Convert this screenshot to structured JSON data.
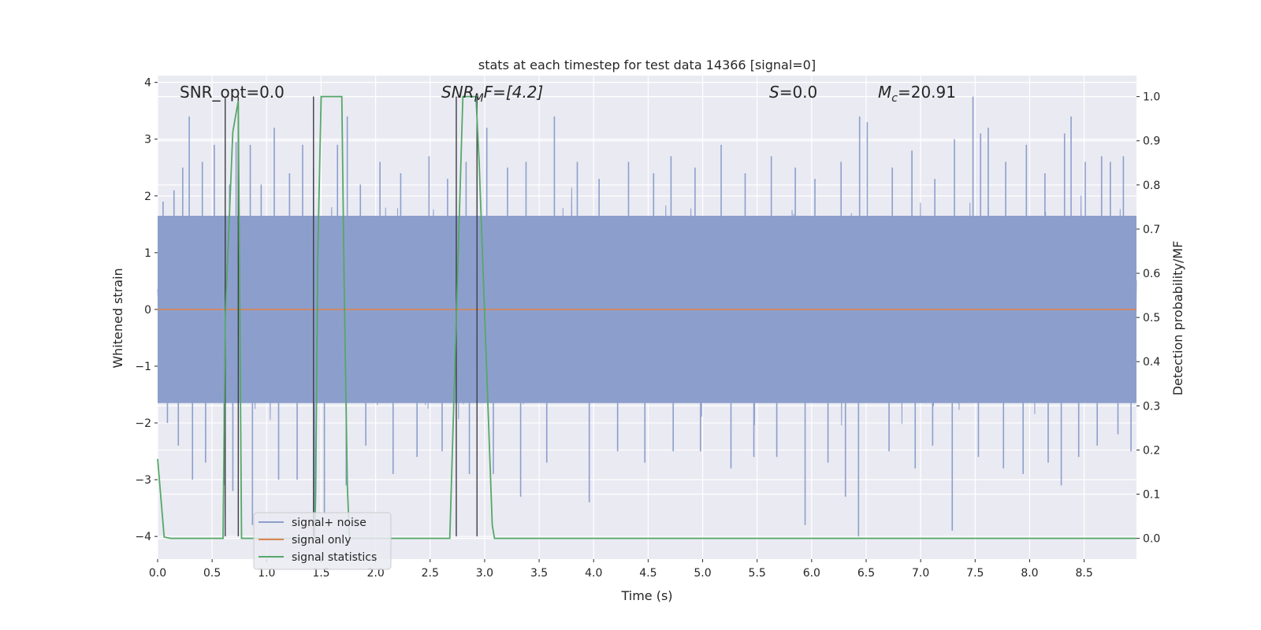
{
  "chart_data": {
    "type": "line",
    "title": "stats at each timestep for test data 14366 [signal=0]",
    "xlabel": "Time (s)",
    "ylabel_left": "Whitened strain",
    "ylabel_right": "Detection probability/MF",
    "xlim": [
      0.0,
      8.98
    ],
    "ylim_left": [
      -4.4,
      4.12
    ],
    "ylim_right": [
      -0.047,
      1.0475
    ],
    "x_ticks": [
      0.0,
      0.5,
      1.0,
      1.5,
      2.0,
      2.5,
      3.0,
      3.5,
      4.0,
      4.5,
      5.0,
      5.5,
      6.0,
      6.5,
      7.0,
      7.5,
      8.0,
      8.5
    ],
    "x_tick_labels": [
      "0.0",
      "0.5",
      "1.0",
      "1.5",
      "2.0",
      "2.5",
      "3.0",
      "3.5",
      "4.0",
      "4.5",
      "5.0",
      "5.5",
      "6.0",
      "6.5",
      "7.0",
      "7.5",
      "8.0",
      "8.5"
    ],
    "y_ticks_left": [
      -4,
      -3,
      -2,
      -1,
      0,
      1,
      2,
      3,
      4
    ],
    "y_tick_labels_left": [
      "−4",
      "−3",
      "−2",
      "−1",
      "0",
      "1",
      "2",
      "3",
      "4"
    ],
    "y_ticks_right": [
      0.0,
      0.1,
      0.2,
      0.3,
      0.4,
      0.5,
      0.6,
      0.7,
      0.8,
      0.9,
      1.0
    ],
    "y_tick_labels_right": [
      "0.0",
      "0.1",
      "0.2",
      "0.3",
      "0.4",
      "0.5",
      "0.6",
      "0.7",
      "0.8",
      "0.9",
      "1.0"
    ],
    "grid": true,
    "legend_position": "lower-left",
    "annotations": {
      "snr_opt": "SNR_opt=0.0",
      "snr_mf_base": "SNR",
      "snr_mf_sub": "M",
      "snr_mf_rest": "F=[4.2]",
      "s_var": "S",
      "s_rest": "=0.0",
      "mc_base": "M",
      "mc_sub": "c",
      "mc_rest": "=20.91"
    },
    "series": [
      {
        "name": "signal+ noise",
        "axis": "left",
        "color": "#8c9fcc",
        "style": "noise",
        "x_range": [
          0.0,
          8.98
        ],
        "core_band": [
          -1.65,
          1.65
        ],
        "peaks": [
          {
            "x": 0.05,
            "y": 1.9
          },
          {
            "x": 0.15,
            "y": 2.1
          },
          {
            "x": 0.23,
            "y": 2.5
          },
          {
            "x": 0.29,
            "y": 3.4
          },
          {
            "x": 0.41,
            "y": 2.6
          },
          {
            "x": 0.52,
            "y": 2.9
          },
          {
            "x": 0.66,
            "y": 2.2
          },
          {
            "x": 0.72,
            "y": 2.95
          },
          {
            "x": 0.85,
            "y": 2.9
          },
          {
            "x": 0.95,
            "y": 2.2
          },
          {
            "x": 1.07,
            "y": 3.2
          },
          {
            "x": 1.21,
            "y": 2.4
          },
          {
            "x": 1.33,
            "y": 2.9
          },
          {
            "x": 1.43,
            "y": 2.5
          },
          {
            "x": 1.65,
            "y": 2.9
          },
          {
            "x": 1.74,
            "y": 3.4
          },
          {
            "x": 1.86,
            "y": 2.2
          },
          {
            "x": 2.04,
            "y": 2.6
          },
          {
            "x": 2.23,
            "y": 2.4
          },
          {
            "x": 2.49,
            "y": 2.7
          },
          {
            "x": 2.66,
            "y": 2.3
          },
          {
            "x": 2.83,
            "y": 2.6
          },
          {
            "x": 3.02,
            "y": 3.2
          },
          {
            "x": 3.21,
            "y": 2.5
          },
          {
            "x": 3.38,
            "y": 2.6
          },
          {
            "x": 3.64,
            "y": 3.4
          },
          {
            "x": 3.85,
            "y": 2.6
          },
          {
            "x": 4.05,
            "y": 2.3
          },
          {
            "x": 4.32,
            "y": 2.6
          },
          {
            "x": 4.55,
            "y": 2.4
          },
          {
            "x": 4.71,
            "y": 2.7
          },
          {
            "x": 4.93,
            "y": 2.5
          },
          {
            "x": 5.17,
            "y": 2.9
          },
          {
            "x": 5.39,
            "y": 2.4
          },
          {
            "x": 5.63,
            "y": 2.7
          },
          {
            "x": 5.85,
            "y": 2.5
          },
          {
            "x": 6.03,
            "y": 2.3
          },
          {
            "x": 6.27,
            "y": 2.6
          },
          {
            "x": 6.44,
            "y": 3.4
          },
          {
            "x": 6.51,
            "y": 3.3
          },
          {
            "x": 6.74,
            "y": 2.5
          },
          {
            "x": 6.92,
            "y": 2.8
          },
          {
            "x": 7.13,
            "y": 2.3
          },
          {
            "x": 7.31,
            "y": 3.0
          },
          {
            "x": 7.48,
            "y": 3.75
          },
          {
            "x": 7.55,
            "y": 3.1
          },
          {
            "x": 7.62,
            "y": 3.2
          },
          {
            "x": 7.78,
            "y": 2.6
          },
          {
            "x": 7.97,
            "y": 2.9
          },
          {
            "x": 8.14,
            "y": 2.4
          },
          {
            "x": 8.32,
            "y": 3.1
          },
          {
            "x": 8.38,
            "y": 3.4
          },
          {
            "x": 8.51,
            "y": 2.6
          },
          {
            "x": 8.66,
            "y": 2.7
          },
          {
            "x": 8.74,
            "y": 2.6
          },
          {
            "x": 8.86,
            "y": 2.7
          }
        ],
        "troughs": [
          {
            "x": 0.09,
            "y": -2.0
          },
          {
            "x": 0.19,
            "y": -2.4
          },
          {
            "x": 0.32,
            "y": -3.0
          },
          {
            "x": 0.44,
            "y": -2.7
          },
          {
            "x": 0.61,
            "y": -3.1
          },
          {
            "x": 0.69,
            "y": -3.2
          },
          {
            "x": 0.87,
            "y": -3.8
          },
          {
            "x": 1.11,
            "y": -3.0
          },
          {
            "x": 1.28,
            "y": -3.0
          },
          {
            "x": 1.44,
            "y": -4.0
          },
          {
            "x": 1.53,
            "y": -3.6
          },
          {
            "x": 1.73,
            "y": -3.1
          },
          {
            "x": 1.91,
            "y": -2.4
          },
          {
            "x": 2.16,
            "y": -2.9
          },
          {
            "x": 2.38,
            "y": -2.6
          },
          {
            "x": 2.61,
            "y": -2.5
          },
          {
            "x": 2.86,
            "y": -2.9
          },
          {
            "x": 3.08,
            "y": -2.9
          },
          {
            "x": 3.33,
            "y": -3.3
          },
          {
            "x": 3.57,
            "y": -2.7
          },
          {
            "x": 3.96,
            "y": -3.4
          },
          {
            "x": 4.22,
            "y": -2.5
          },
          {
            "x": 4.47,
            "y": -2.7
          },
          {
            "x": 4.73,
            "y": -2.5
          },
          {
            "x": 4.98,
            "y": -2.5
          },
          {
            "x": 5.26,
            "y": -2.8
          },
          {
            "x": 5.47,
            "y": -2.6
          },
          {
            "x": 5.68,
            "y": -2.6
          },
          {
            "x": 5.94,
            "y": -3.8
          },
          {
            "x": 6.15,
            "y": -2.7
          },
          {
            "x": 6.31,
            "y": -3.3
          },
          {
            "x": 6.43,
            "y": -4.0
          },
          {
            "x": 6.71,
            "y": -2.5
          },
          {
            "x": 6.95,
            "y": -2.8
          },
          {
            "x": 7.11,
            "y": -2.4
          },
          {
            "x": 7.29,
            "y": -3.9
          },
          {
            "x": 7.53,
            "y": -2.6
          },
          {
            "x": 7.76,
            "y": -2.8
          },
          {
            "x": 7.94,
            "y": -2.9
          },
          {
            "x": 8.17,
            "y": -2.7
          },
          {
            "x": 8.29,
            "y": -3.1
          },
          {
            "x": 8.45,
            "y": -2.6
          },
          {
            "x": 8.62,
            "y": -2.4
          },
          {
            "x": 8.81,
            "y": -2.2
          },
          {
            "x": 8.93,
            "y": -2.5
          }
        ]
      },
      {
        "name": "signal only",
        "axis": "left",
        "color": "#dd8452",
        "x": [
          0.0,
          8.98
        ],
        "y": [
          0.0,
          0.0
        ]
      },
      {
        "name": "signal statistics",
        "axis": "right",
        "color": "#55a868",
        "x": [
          0.0,
          0.06,
          0.12,
          0.6,
          0.62,
          0.69,
          0.74,
          0.77,
          0.8,
          1.44,
          1.45,
          1.47,
          1.5,
          1.69,
          1.71,
          1.74,
          1.76,
          2.68,
          2.74,
          2.8,
          2.92,
          2.95,
          3.07,
          3.09,
          8.98
        ],
        "y": [
          0.18,
          0.003,
          0.0,
          0.0,
          0.5,
          0.92,
          0.99,
          0.0,
          0.0,
          0.0,
          0.1,
          0.65,
          1.0,
          1.0,
          0.6,
          0.12,
          0.0,
          0.0,
          0.5,
          1.0,
          1.0,
          0.85,
          0.03,
          0.0,
          0.0
        ]
      }
    ],
    "vertical_lines": {
      "color": "#3d3d45",
      "x": [
        0.62,
        0.74,
        1.43,
        2.74,
        2.93
      ],
      "y_range": [
        -4.0,
        3.75
      ]
    }
  }
}
